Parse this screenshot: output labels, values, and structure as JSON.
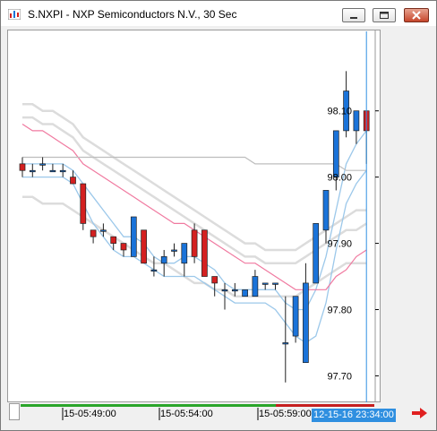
{
  "window": {
    "title": "S.NXPI - NXP Semiconductors N.V., 30 Sec"
  },
  "colors": {
    "up": "#1a73d9",
    "down": "#d42020",
    "outline": "#202020",
    "cursor": "#2f8fe0",
    "band_outer": "#dcdcdc",
    "band_inner": "#9cc8ea",
    "mid_pink": "#f07aa0",
    "long_gray": "#bdbdbd"
  },
  "x_labels": [
    "15-05:49:00",
    "15-05:54:00",
    "15-05:59:00"
  ],
  "cursor_label": "12-15-16 23:34:00",
  "chart_data": {
    "type": "candlestick",
    "ylim": [
      97.66,
      98.22
    ],
    "y_ticks": [
      "98.10",
      "98.00",
      "97.90",
      "97.80",
      "97.70"
    ],
    "candles": [
      {
        "o": 98.02,
        "h": 98.03,
        "l": 98.0,
        "c": 98.01
      },
      {
        "o": 98.01,
        "h": 98.02,
        "l": 98.0,
        "c": 98.01
      },
      {
        "o": 98.02,
        "h": 98.03,
        "l": 98.01,
        "c": 98.02
      },
      {
        "o": 98.01,
        "h": 98.02,
        "l": 98.01,
        "c": 98.01
      },
      {
        "o": 98.01,
        "h": 98.02,
        "l": 98.0,
        "c": 98.01
      },
      {
        "o": 98.0,
        "h": 98.01,
        "l": 97.99,
        "c": 97.99
      },
      {
        "o": 97.99,
        "h": 97.99,
        "l": 97.92,
        "c": 97.93
      },
      {
        "o": 97.92,
        "h": 97.92,
        "l": 97.9,
        "c": 97.91
      },
      {
        "o": 97.92,
        "h": 97.93,
        "l": 97.91,
        "c": 97.92
      },
      {
        "o": 97.91,
        "h": 97.91,
        "l": 97.89,
        "c": 97.9
      },
      {
        "o": 97.9,
        "h": 97.9,
        "l": 97.88,
        "c": 97.89
      },
      {
        "o": 97.88,
        "h": 97.94,
        "l": 97.88,
        "c": 97.94
      },
      {
        "o": 97.92,
        "h": 97.92,
        "l": 97.87,
        "c": 97.87
      },
      {
        "o": 97.86,
        "h": 97.88,
        "l": 97.85,
        "c": 97.86
      },
      {
        "o": 97.87,
        "h": 97.89,
        "l": 97.85,
        "c": 97.88
      },
      {
        "o": 97.89,
        "h": 97.9,
        "l": 97.88,
        "c": 97.89
      },
      {
        "o": 97.87,
        "h": 97.9,
        "l": 97.85,
        "c": 97.9
      },
      {
        "o": 97.92,
        "h": 97.93,
        "l": 97.87,
        "c": 97.88
      },
      {
        "o": 97.92,
        "h": 97.92,
        "l": 97.85,
        "c": 97.85
      },
      {
        "o": 97.85,
        "h": 97.85,
        "l": 97.82,
        "c": 97.84
      },
      {
        "o": 97.83,
        "h": 97.84,
        "l": 97.8,
        "c": 97.83
      },
      {
        "o": 97.83,
        "h": 97.84,
        "l": 97.82,
        "c": 97.83
      },
      {
        "o": 97.82,
        "h": 97.83,
        "l": 97.82,
        "c": 97.83
      },
      {
        "o": 97.82,
        "h": 97.86,
        "l": 97.82,
        "c": 97.85
      },
      {
        "o": 97.84,
        "h": 97.84,
        "l": 97.83,
        "c": 97.84
      },
      {
        "o": 97.84,
        "h": 97.84,
        "l": 97.83,
        "c": 97.84
      },
      {
        "o": 97.75,
        "h": 97.82,
        "l": 97.69,
        "c": 97.75
      },
      {
        "o": 97.76,
        "h": 97.82,
        "l": 97.75,
        "c": 97.82
      },
      {
        "o": 97.72,
        "h": 97.87,
        "l": 97.72,
        "c": 97.84
      },
      {
        "o": 97.84,
        "h": 97.93,
        "l": 97.84,
        "c": 97.93
      },
      {
        "o": 97.92,
        "h": 97.98,
        "l": 97.9,
        "c": 97.98
      },
      {
        "o": 98.0,
        "h": 98.07,
        "l": 97.98,
        "c": 98.07
      },
      {
        "o": 98.07,
        "h": 98.16,
        "l": 98.06,
        "c": 98.13
      },
      {
        "o": 98.07,
        "h": 98.1,
        "l": 98.05,
        "c": 98.1
      },
      {
        "o": 98.1,
        "h": 98.1,
        "l": 98.02,
        "c": 98.07
      }
    ],
    "overlays": [
      {
        "role": "band_outer",
        "values": [
          98.11,
          98.11,
          98.1,
          98.1,
          98.09,
          98.08,
          98.06,
          98.05,
          98.04,
          98.03,
          98.02,
          98.01,
          98.0,
          97.99,
          97.98,
          97.97,
          97.96,
          97.95,
          97.94,
          97.93,
          97.92,
          97.91,
          97.9,
          97.9,
          97.89,
          97.89,
          97.89,
          97.89,
          97.9,
          97.91,
          97.92,
          97.93,
          97.94,
          97.95,
          97.95
        ]
      },
      {
        "role": "band_outer",
        "values": [
          98.09,
          98.09,
          98.08,
          98.08,
          98.07,
          98.06,
          98.04,
          98.03,
          98.02,
          98.01,
          98.0,
          97.99,
          97.98,
          97.97,
          97.96,
          97.95,
          97.94,
          97.93,
          97.92,
          97.91,
          97.9,
          97.89,
          97.88,
          97.88,
          97.87,
          97.87,
          97.87,
          97.87,
          97.88,
          97.89,
          97.9,
          97.91,
          97.92,
          97.92,
          97.93
        ]
      },
      {
        "role": "band_outer",
        "values": [
          97.97,
          97.97,
          97.96,
          97.96,
          97.96,
          97.95,
          97.94,
          97.93,
          97.92,
          97.91,
          97.9,
          97.89,
          97.88,
          97.87,
          97.87,
          97.86,
          97.85,
          97.84,
          97.84,
          97.83,
          97.83,
          97.82,
          97.82,
          97.82,
          97.82,
          97.82,
          97.82,
          97.82,
          97.83,
          97.84,
          97.85,
          97.86,
          97.87,
          97.87,
          97.87
        ]
      },
      {
        "role": "band_inner",
        "values": [
          98.02,
          98.02,
          98.02,
          98.02,
          98.02,
          98.01,
          97.99,
          97.97,
          97.95,
          97.93,
          97.91,
          97.91,
          97.9,
          97.88,
          97.87,
          97.87,
          97.88,
          97.88,
          97.87,
          97.86,
          97.84,
          97.83,
          97.83,
          97.83,
          97.83,
          97.83,
          97.81,
          97.8,
          97.8,
          97.83,
          97.88,
          97.95,
          98.02,
          98.05,
          98.07
        ]
      },
      {
        "role": "band_inner",
        "values": [
          98.0,
          98.0,
          98.0,
          98.0,
          98.0,
          97.99,
          97.96,
          97.93,
          97.91,
          97.89,
          97.88,
          97.88,
          97.87,
          97.86,
          97.85,
          97.85,
          97.85,
          97.85,
          97.84,
          97.83,
          97.82,
          97.81,
          97.81,
          97.81,
          97.81,
          97.8,
          97.78,
          97.76,
          97.75,
          97.76,
          97.81,
          97.89,
          97.96,
          97.99,
          98.01
        ]
      },
      {
        "role": "mid_pink",
        "values": [
          98.08,
          98.07,
          98.07,
          98.06,
          98.05,
          98.04,
          98.02,
          98.01,
          98.0,
          97.99,
          97.98,
          97.97,
          97.96,
          97.95,
          97.94,
          97.93,
          97.93,
          97.92,
          97.91,
          97.9,
          97.89,
          97.88,
          97.87,
          97.87,
          97.86,
          97.85,
          97.84,
          97.83,
          97.83,
          97.83,
          97.83,
          97.85,
          97.86,
          97.88,
          97.89
        ]
      },
      {
        "role": "long_gray",
        "values": [
          98.03,
          98.03,
          98.03,
          98.03,
          98.03,
          98.03,
          98.03,
          98.03,
          98.03,
          98.03,
          98.03,
          98.03,
          98.03,
          98.03,
          98.03,
          98.03,
          98.03,
          98.03,
          98.03,
          98.03,
          98.03,
          98.03,
          98.03,
          98.02,
          98.02,
          98.02,
          98.02,
          98.02,
          98.02,
          98.02,
          98.02,
          98.02,
          98.01,
          98.01,
          98.01
        ]
      }
    ]
  }
}
